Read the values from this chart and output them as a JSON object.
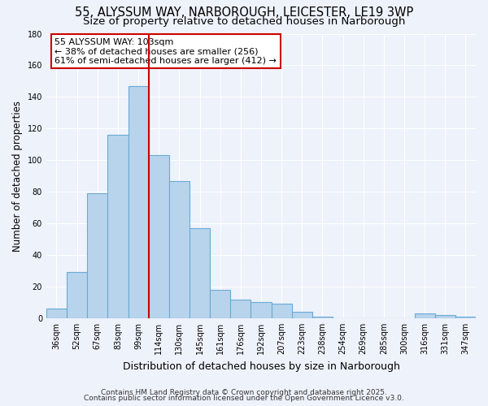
{
  "title": "55, ALYSSUM WAY, NARBOROUGH, LEICESTER, LE19 3WP",
  "subtitle": "Size of property relative to detached houses in Narborough",
  "xlabel": "Distribution of detached houses by size in Narborough",
  "ylabel": "Number of detached properties",
  "categories": [
    "36sqm",
    "52sqm",
    "67sqm",
    "83sqm",
    "99sqm",
    "114sqm",
    "130sqm",
    "145sqm",
    "161sqm",
    "176sqm",
    "192sqm",
    "207sqm",
    "223sqm",
    "238sqm",
    "254sqm",
    "269sqm",
    "285sqm",
    "300sqm",
    "316sqm",
    "331sqm",
    "347sqm"
  ],
  "values": [
    6,
    29,
    79,
    116,
    147,
    103,
    87,
    57,
    18,
    12,
    10,
    9,
    4,
    1,
    0,
    0,
    0,
    0,
    3,
    2,
    1
  ],
  "bar_color": "#b8d4ec",
  "bar_edge_color": "#6aaad4",
  "vline_x_index": 5,
  "vline_color": "#cc0000",
  "annotation_line1": "55 ALYSSUM WAY: 103sqm",
  "annotation_line2": "← 38% of detached houses are smaller (256)",
  "annotation_line3": "61% of semi-detached houses are larger (412) →",
  "annotation_box_color": "#ffffff",
  "annotation_box_edge": "#cc0000",
  "ylim": [
    0,
    180
  ],
  "yticks": [
    0,
    20,
    40,
    60,
    80,
    100,
    120,
    140,
    160,
    180
  ],
  "background_color": "#eef2fb",
  "grid_color": "#ffffff",
  "footer1": "Contains HM Land Registry data © Crown copyright and database right 2025.",
  "footer2": "Contains public sector information licensed under the Open Government Licence v3.0.",
  "title_fontsize": 10.5,
  "subtitle_fontsize": 9.5,
  "xlabel_fontsize": 9,
  "ylabel_fontsize": 8.5,
  "tick_fontsize": 7,
  "annotation_fontsize": 8,
  "footer_fontsize": 6.5
}
